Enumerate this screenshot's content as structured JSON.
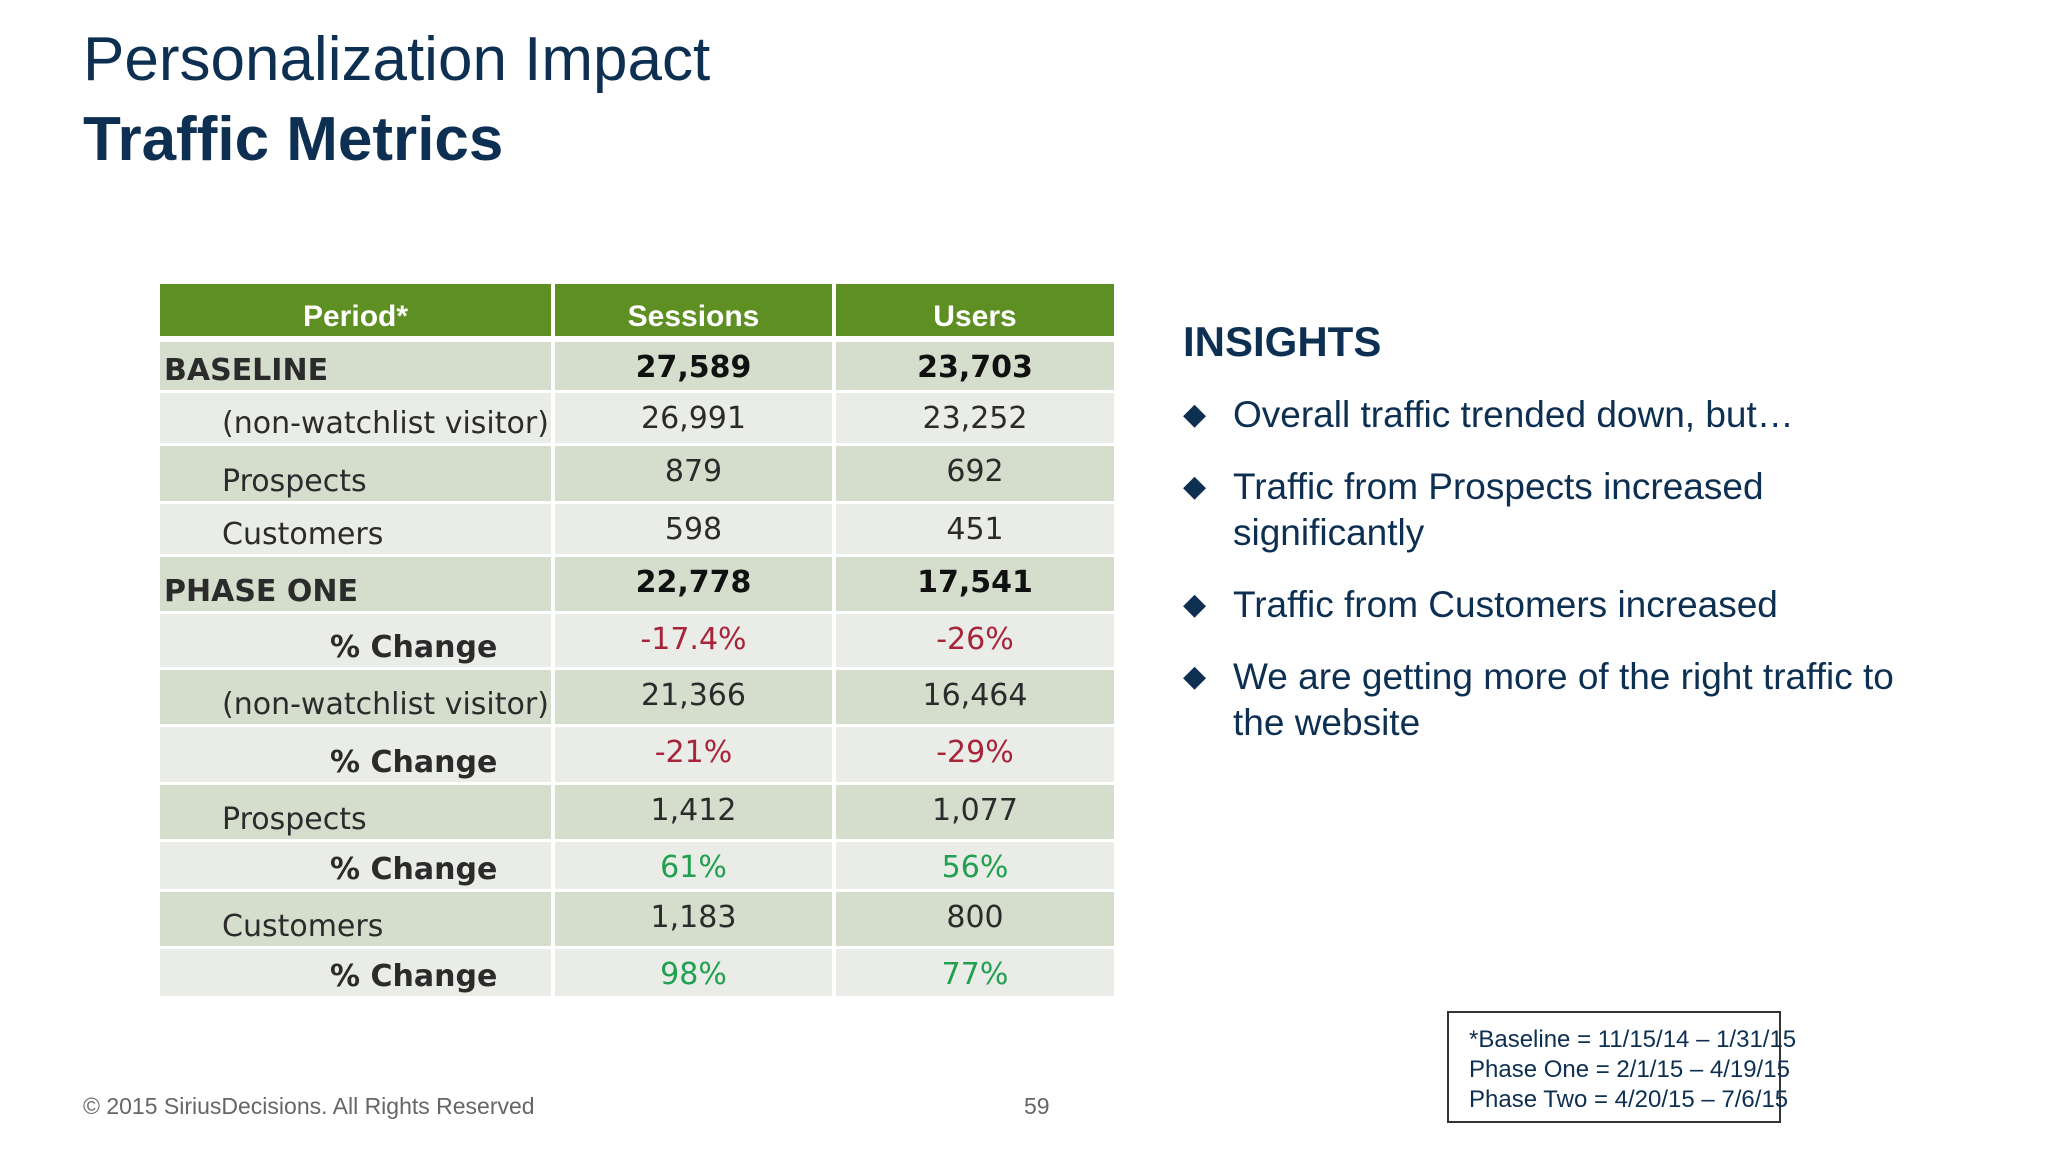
{
  "slide": {
    "title": "Personalization Impact",
    "subtitle": "Traffic Metrics",
    "page_number": "59",
    "footer": "© 2015 SiriusDecisions. All Rights Reserved"
  },
  "table": {
    "headers": [
      "Period*",
      "Sessions",
      "Users"
    ],
    "rows": [
      {
        "label": "BASELINE",
        "sessions": "27,589",
        "users": "23,703"
      },
      {
        "label": "(non-watchlist visitor)",
        "sessions": "26,991",
        "users": "23,252"
      },
      {
        "label": "Prospects",
        "sessions": "879",
        "users": "692"
      },
      {
        "label": "Customers",
        "sessions": "598",
        "users": "451"
      },
      {
        "label": "PHASE ONE",
        "sessions": "22,778",
        "users": "17,541"
      },
      {
        "label": "% Change",
        "sessions": "-17.4%",
        "users": "-26%"
      },
      {
        "label": "(non-watchlist visitor)",
        "sessions": "21,366",
        "users": "16,464"
      },
      {
        "label": "% Change",
        "sessions": "-21%",
        "users": "-29%"
      },
      {
        "label": "Prospects",
        "sessions": "1,412",
        "users": "1,077"
      },
      {
        "label": "% Change",
        "sessions": "61%",
        "users": "56%"
      },
      {
        "label": "Customers",
        "sessions": "1,183",
        "users": "800"
      },
      {
        "label": "% Change",
        "sessions": "98%",
        "users": "77%"
      }
    ],
    "colors": {
      "header_bg": "#5e8f22",
      "row_dark": "#d5decd",
      "row_light": "#eaede7",
      "negative": "#a8243a",
      "positive": "#21a050"
    }
  },
  "insights": {
    "heading": "INSIGHTS",
    "bullet_icon": "diamond-bullet-icon",
    "items": [
      "Overall traffic trended down, but…",
      "Traffic from Prospects increased significantly",
      "Traffic from Customers increased",
      "We are getting more of the right traffic to the website"
    ]
  },
  "legend": {
    "lines": [
      "*Baseline = 11/15/14 – 1/31/15",
      "Phase One = 2/1/15 – 4/19/15",
      "Phase Two = 4/20/15 – 7/6/15"
    ]
  }
}
